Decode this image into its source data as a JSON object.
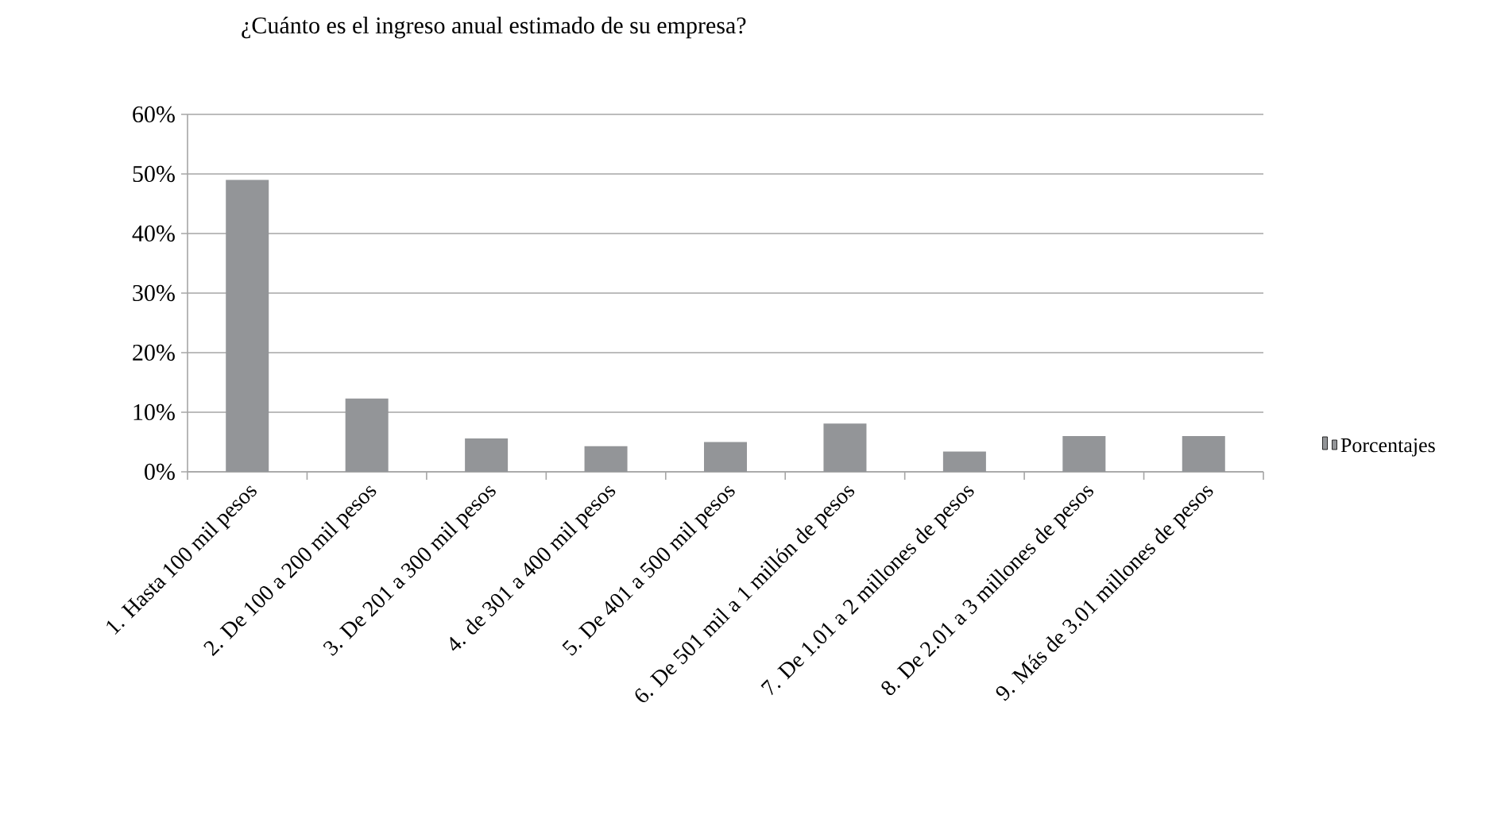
{
  "chart_data": {
    "type": "bar",
    "title": "¿Cuánto es el ingreso anual estimado de su empresa?",
    "categories": [
      "1. Hasta 100 mil pesos",
      "2. De 100 a 200 mil pesos",
      "3. De 201 a 300 mil pesos",
      "4. de 301 a 400 mil pesos",
      "5. De 401 a 500 mil pesos",
      "6. De 501 mil a 1 millón de pesos",
      "7. De 1.01 a 2 millones de pesos",
      "8. De 2.01 a 3 millones de pesos",
      "9. Más de 3.01 millones de pesos"
    ],
    "series": [
      {
        "name": "Porcentajes",
        "color": "#939598",
        "values": [
          49,
          12.3,
          5.6,
          4.3,
          5.0,
          8.1,
          3.4,
          6.0,
          6.0
        ]
      }
    ],
    "ylim": [
      0,
      60
    ],
    "yticks": [
      {
        "value": 0,
        "label": "0%"
      },
      {
        "value": 10,
        "label": "10%"
      },
      {
        "value": 20,
        "label": "20%"
      },
      {
        "value": 30,
        "label": "30%"
      },
      {
        "value": 40,
        "label": "40%"
      },
      {
        "value": 50,
        "label": "50%"
      },
      {
        "value": 60,
        "label": "60%"
      }
    ],
    "grid": "y",
    "legend": "right"
  }
}
